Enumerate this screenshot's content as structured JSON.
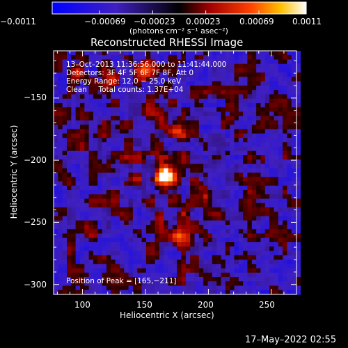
{
  "chart_data": {
    "type": "heatmap",
    "title": "Reconstructed RHESSI Image",
    "xlabel": "Heliocentric X (arcsec)",
    "ylabel": "Heliocentric Y (arcsec)",
    "xlim": [
      77,
      270
    ],
    "ylim": [
      -308,
      -112
    ],
    "x_ticks": [
      100,
      150,
      200,
      250
    ],
    "y_ticks": [
      -150,
      -200,
      -250,
      -300
    ],
    "x_tick_labels": [
      "100",
      "150",
      "200",
      "250"
    ],
    "y_tick_labels": [
      "−150",
      "−200",
      "−250",
      "−300"
    ],
    "colorbar": {
      "range": [
        -0.0011,
        0.0011
      ],
      "tick_labels": [
        "−0.0011",
        "−0.00069",
        "−0.00023",
        "0.00023",
        "0.00069",
        "0.0011"
      ],
      "units": "(photons cm⁻² s⁻¹ asec⁻²)"
    },
    "annotations": {
      "time_range": "13–Oct–2013 11:36:56.000 to 11:41:44.000",
      "detectors": "Detectors: 3F 4F 5F 6F 7F 8F, Att 0",
      "energy_range": "Energy Range: 12.0 − 25.0 keV",
      "method_counts": "Clean     Total counts: 1.37E+04",
      "peak_position": "Position of Peak = [165,−211]"
    },
    "peak": {
      "x": 165,
      "y": -211
    },
    "sources": [
      {
        "x": 165,
        "y": -211,
        "amp": 1.0,
        "sigma": 5
      },
      {
        "x": 174,
        "y": -177,
        "amp": 0.62,
        "sigma": 5
      },
      {
        "x": 122,
        "y": -136,
        "amp": 0.55,
        "sigma": 5
      },
      {
        "x": 96,
        "y": -131,
        "amp": 0.45,
        "sigma": 4
      },
      {
        "x": 150,
        "y": -128,
        "amp": 0.42,
        "sigma": 5
      },
      {
        "x": 178,
        "y": -262,
        "amp": 0.55,
        "sigma": 5
      }
    ],
    "footer_date": "17–May–2022 02:55"
  }
}
